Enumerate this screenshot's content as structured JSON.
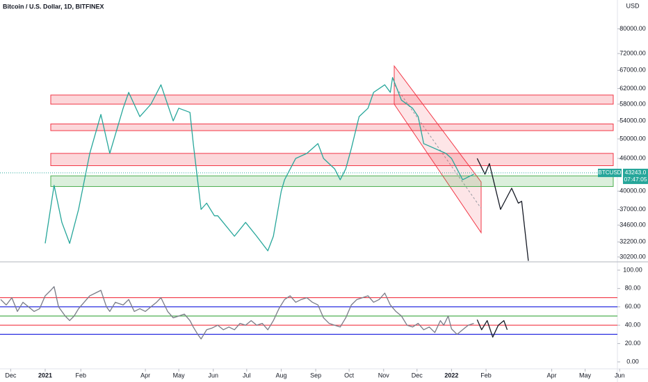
{
  "chart_data": [
    {
      "type": "line",
      "title": "Bitcoin / U.S. Dollar, 1D, BITFINEX",
      "unit": "USD",
      "log": true,
      "xlim": [
        -40.6,
        514
      ],
      "ylim": [
        29750,
        90500
      ],
      "yticks": [
        {
          "value": 30200,
          "label": "30200.00"
        },
        {
          "value": 32200,
          "label": "32200.00"
        },
        {
          "value": 34600,
          "label": "34600.00"
        },
        {
          "value": 37000,
          "label": "37000.00"
        },
        {
          "value": 40000,
          "label": "40000.00"
        },
        {
          "value": 46000,
          "label": "46000.00"
        },
        {
          "value": 50000,
          "label": "50000.00"
        },
        {
          "value": 54000,
          "label": "54000.00"
        },
        {
          "value": 58000,
          "label": "58000.00"
        },
        {
          "value": 62000,
          "label": "62000.00"
        },
        {
          "value": 67000,
          "label": "67000.00"
        },
        {
          "value": 72000,
          "label": "72000.00"
        },
        {
          "value": 80000,
          "label": "80000.00"
        }
      ],
      "xticks": [
        {
          "value": -31,
          "label": "Dec"
        },
        {
          "value": 0,
          "label": "2021"
        },
        {
          "value": 32,
          "label": "Feb"
        },
        {
          "value": 90,
          "label": "Apr"
        },
        {
          "value": 120,
          "label": "May"
        },
        {
          "value": 151,
          "label": "Jun"
        },
        {
          "value": 181,
          "label": "Jul"
        },
        {
          "value": 212,
          "label": "Aug"
        },
        {
          "value": 243,
          "label": "Sep"
        },
        {
          "value": 273,
          "label": "Oct"
        },
        {
          "value": 304,
          "label": "Nov"
        },
        {
          "value": 334,
          "label": "Dec"
        },
        {
          "value": 365,
          "label": "2022"
        },
        {
          "value": 396,
          "label": "Feb"
        },
        {
          "value": 455,
          "label": "Apr"
        },
        {
          "value": 485,
          "label": "May"
        },
        {
          "value": 516,
          "label": "Jun"
        }
      ],
      "zones": [
        {
          "low": 58000,
          "high": 60300,
          "color": "#f23645"
        },
        {
          "low": 51800,
          "high": 53300,
          "color": "#f23645"
        },
        {
          "low": 44600,
          "high": 47000,
          "color": "#f23645"
        },
        {
          "low": 40800,
          "high": 42700,
          "color": "#4caf50"
        }
      ],
      "series": [
        {
          "color": "#26a69a",
          "x": [
            0,
            8,
            15,
            22,
            30,
            40,
            50,
            58,
            70,
            75,
            85,
            95,
            104,
            115,
            120,
            130,
            133,
            140,
            145,
            152,
            155,
            170,
            180,
            190,
            200,
            205,
            212,
            215,
            225,
            235,
            245,
            250,
            260,
            265,
            270,
            275,
            282,
            290,
            295,
            305,
            310,
            312,
            320,
            330,
            335,
            340,
            350,
            360,
            365,
            375,
            385
          ],
          "values": [
            32000,
            41000,
            35000,
            32000,
            37000,
            47000,
            55500,
            47000,
            57000,
            61000,
            55000,
            58000,
            63000,
            54000,
            57000,
            56000,
            49000,
            37000,
            38000,
            36000,
            36000,
            33000,
            35000,
            33000,
            31000,
            33000,
            40000,
            42000,
            46000,
            47000,
            49000,
            46000,
            44000,
            42000,
            44000,
            48000,
            55000,
            57000,
            61000,
            63000,
            61000,
            65000,
            59000,
            57000,
            55000,
            49000,
            48000,
            47000,
            46000,
            42000,
            43000
          ]
        },
        {
          "color": "#131722",
          "x": [
            388,
            395,
            399,
            409,
            419,
            425,
            428,
            434
          ],
          "values": [
            46000,
            43000,
            45000,
            37000,
            40500,
            38000,
            38300,
            29700
          ]
        }
      ],
      "last": {
        "label": "BTCUSD",
        "value": {
          "value": 43243,
          "label": "43243.0"
        },
        "countdown": "07:47:05"
      }
    },
    {
      "type": "line",
      "xlim": [
        -40.6,
        514
      ],
      "ylim": [
        -6.8,
        108.3
      ],
      "yticks": [
        {
          "value": 0,
          "label": "0.00"
        },
        {
          "value": 20,
          "label": "20.00"
        },
        {
          "value": 40,
          "label": "40.00"
        },
        {
          "value": 60,
          "label": "60.00"
        },
        {
          "value": 80,
          "label": "80.00"
        },
        {
          "value": 100,
          "label": "100.00"
        }
      ],
      "levels": [
        {
          "value": 70,
          "color": "#f23645"
        },
        {
          "value": 60,
          "color": "#2a2ee0"
        },
        {
          "value": 50,
          "color": "#4caf50"
        },
        {
          "value": 40,
          "color": "#f23645"
        },
        {
          "value": 30,
          "color": "#2a2ee0"
        }
      ],
      "series": [
        {
          "color": "#787b86",
          "x": [
            -40,
            -35,
            -30,
            -25,
            -20,
            -15,
            -10,
            -5,
            0,
            5,
            8,
            12,
            18,
            22,
            26,
            30,
            35,
            40,
            45,
            50,
            55,
            58,
            63,
            70,
            75,
            80,
            85,
            90,
            95,
            100,
            104,
            110,
            115,
            120,
            125,
            130,
            133,
            137,
            140,
            145,
            150,
            155,
            160,
            165,
            170,
            175,
            180,
            185,
            190,
            195,
            200,
            205,
            210,
            215,
            220,
            225,
            230,
            235,
            240,
            245,
            250,
            255,
            260,
            265,
            270,
            275,
            280,
            285,
            290,
            295,
            300,
            305,
            310,
            315,
            320,
            325,
            330,
            335,
            340,
            345,
            350,
            355,
            358,
            362,
            365,
            370,
            375,
            380,
            385
          ],
          "values": [
            68,
            62,
            70,
            55,
            65,
            60,
            55,
            58,
            72,
            78,
            82,
            60,
            50,
            45,
            50,
            58,
            65,
            72,
            75,
            78,
            60,
            55,
            65,
            62,
            68,
            55,
            58,
            55,
            60,
            65,
            70,
            55,
            48,
            50,
            52,
            45,
            38,
            30,
            25,
            35,
            37,
            40,
            35,
            38,
            35,
            42,
            40,
            45,
            40,
            42,
            35,
            45,
            58,
            68,
            72,
            65,
            68,
            70,
            65,
            62,
            48,
            42,
            40,
            38,
            48,
            62,
            68,
            70,
            72,
            65,
            68,
            75,
            62,
            55,
            50,
            40,
            38,
            42,
            35,
            38,
            32,
            45,
            40,
            50,
            36,
            30,
            35,
            40,
            42
          ]
        },
        {
          "color": "#131722",
          "x": [
            388,
            392,
            397,
            402,
            407,
            412,
            415
          ],
          "values": [
            46,
            35,
            45,
            27,
            40,
            45,
            35
          ]
        }
      ]
    }
  ]
}
